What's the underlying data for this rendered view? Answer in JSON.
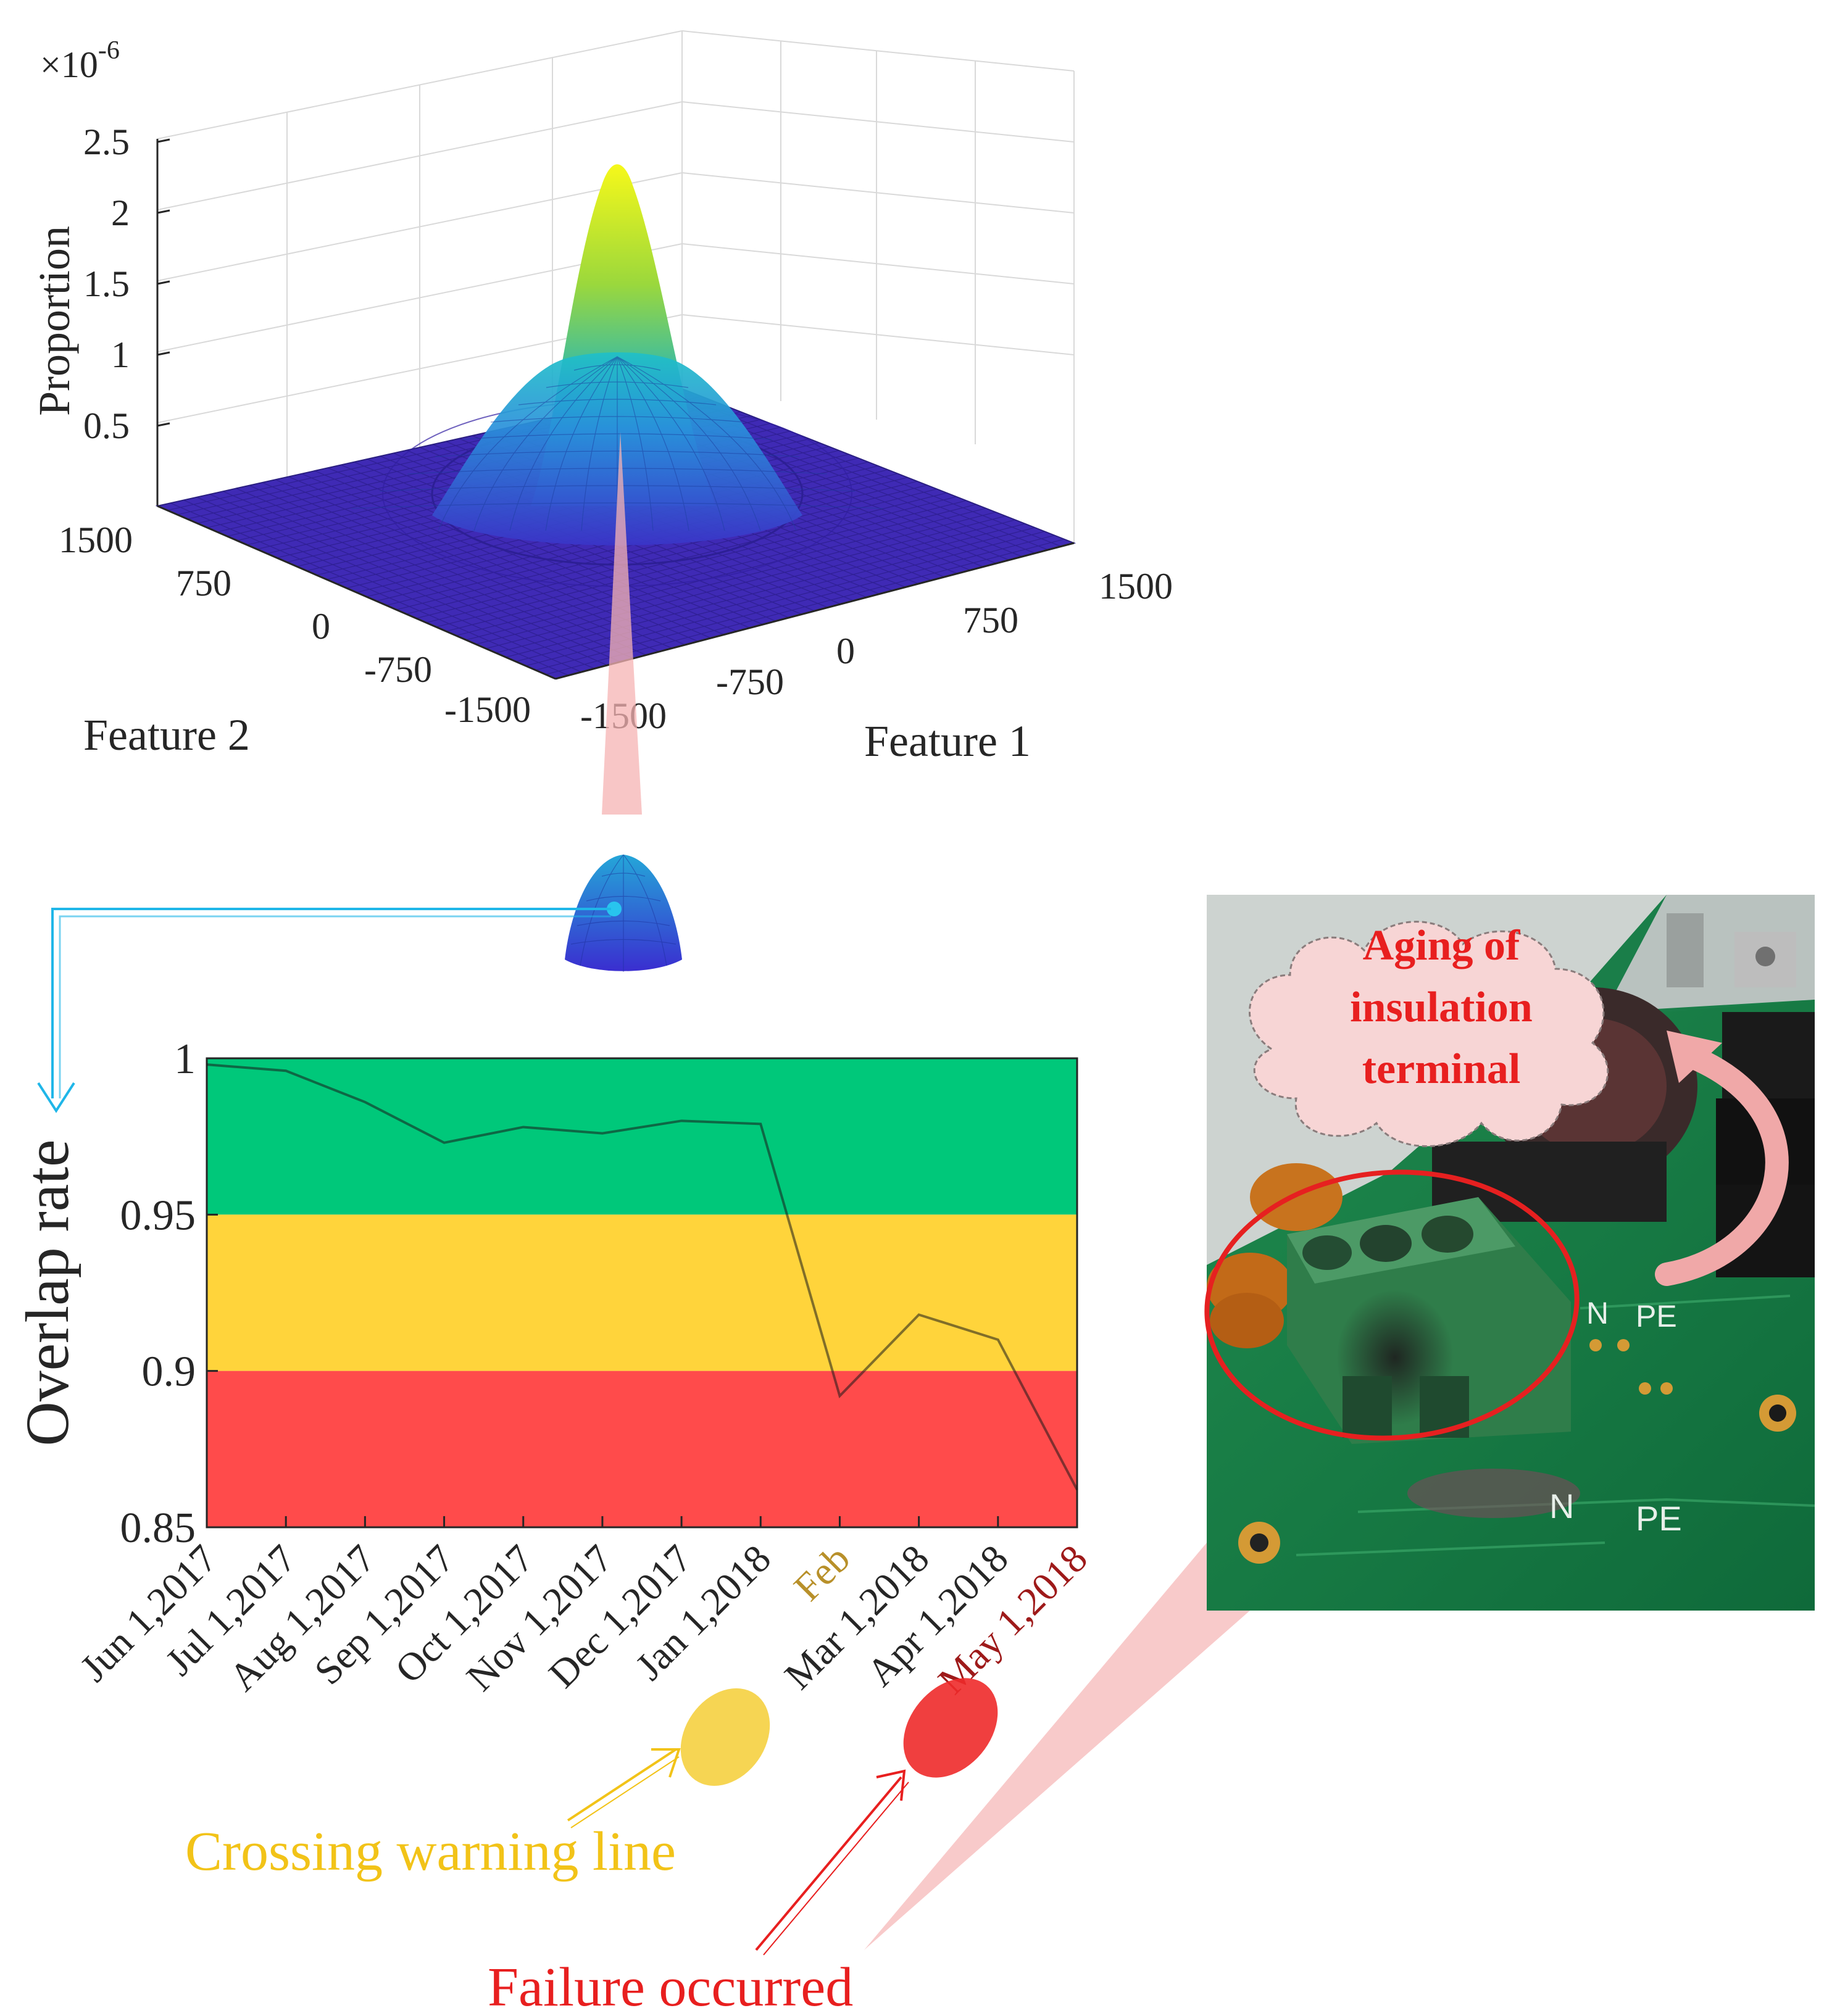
{
  "surface_plot": {
    "type": "surface",
    "zscale_label": "×10",
    "zscale_exponent": "-6",
    "zlabel": "Proportion",
    "xlabel": "Feature 1",
    "ylabel": "Feature 2",
    "ztick_labels": [
      "0.5",
      "1",
      "1.5",
      "2",
      "2.5"
    ],
    "zlim": [
      0,
      2.5
    ],
    "feature1_tick_labels": [
      "-1500",
      "-750",
      "0",
      "750",
      "1500"
    ],
    "feature2_tick_labels": [
      "-1500",
      "-750",
      "0",
      "750",
      "1500"
    ],
    "feature1_lim": [
      -1500,
      1500
    ],
    "feature2_lim": [
      -1500,
      1500
    ],
    "peaks": [
      {
        "center": [
          0,
          0
        ],
        "height": 2.3
      },
      {
        "center": [
          0,
          0
        ],
        "height": 1.0
      }
    ],
    "colors": {
      "low": "#3e26a8",
      "mid": "#1fa2d2",
      "high": "#f9fb15"
    }
  },
  "chart_data": {
    "type": "line",
    "ylabel": "Overlap rate",
    "x": [
      "Jun 1,2017",
      "Jul 1,2017",
      "Aug 1,2017",
      "Sep 1,2017",
      "Oct 1,2017",
      "Nov 1,2017",
      "Dec 1,2017",
      "Jan 1,2018",
      "Feb",
      "Mar 1,2018",
      "Apr 1,2018",
      "May 1,2018"
    ],
    "values": [
      0.998,
      0.996,
      0.986,
      0.973,
      0.978,
      0.976,
      0.98,
      0.979,
      0.892,
      0.918,
      0.91,
      0.862
    ],
    "ylim": [
      0.85,
      1.0
    ],
    "yticks": [
      "0.85",
      "0.9",
      "0.95",
      "1"
    ],
    "bands": [
      {
        "from": 0.95,
        "to": 1.0,
        "color": "#00c87a"
      },
      {
        "from": 0.9,
        "to": 0.95,
        "color": "#ffd43b"
      },
      {
        "from": 0.85,
        "to": 0.9,
        "color": "#ff4b4b"
      }
    ],
    "highlighted": [
      {
        "index": 8,
        "color": "#f5d040"
      },
      {
        "index": 11,
        "color": "#ee2a2a"
      }
    ],
    "grid": false
  },
  "annotations": {
    "warning": "Crossing warning line",
    "failure": "Failure occurred",
    "aging": [
      "Aging of",
      "insulation",
      "terminal"
    ],
    "pcb_silkscreen": [
      "N",
      "PE",
      "N",
      "PE"
    ]
  },
  "colors": {
    "warning": "#f2c318",
    "failure": "#e81f1f",
    "connector": "#1fb6e8",
    "callout": "#f5b3b3"
  }
}
